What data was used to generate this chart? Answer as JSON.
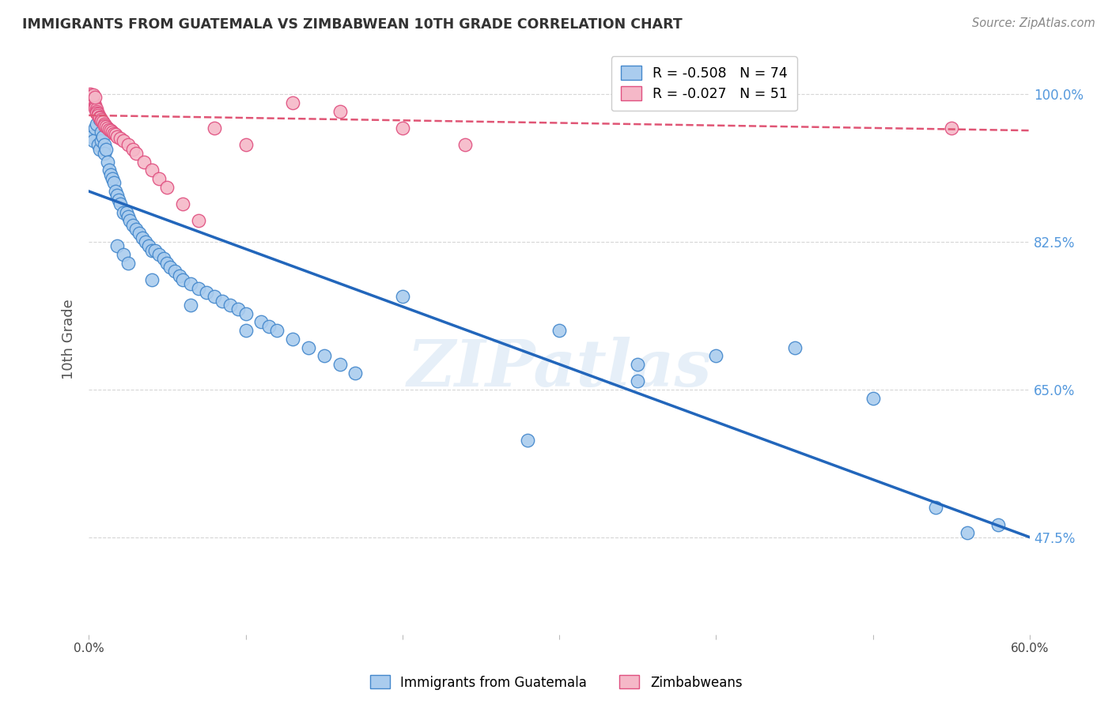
{
  "title": "IMMIGRANTS FROM GUATEMALA VS ZIMBABWEAN 10TH GRADE CORRELATION CHART",
  "source": "Source: ZipAtlas.com",
  "ylabel": "10th Grade",
  "ytick_labels": [
    "100.0%",
    "82.5%",
    "65.0%",
    "47.5%"
  ],
  "ytick_values": [
    1.0,
    0.825,
    0.65,
    0.475
  ],
  "xlim": [
    0.0,
    0.6
  ],
  "ylim": [
    0.36,
    1.06
  ],
  "blue_R": "-0.508",
  "blue_N": "74",
  "pink_R": "-0.027",
  "pink_N": "51",
  "legend_label_blue": "Immigrants from Guatemala",
  "legend_label_pink": "Zimbabweans",
  "blue_fill": "#aaccee",
  "blue_edge": "#4488cc",
  "pink_fill": "#f5b8c8",
  "pink_edge": "#e05080",
  "blue_line_color": "#2266bb",
  "pink_line_color": "#e05575",
  "watermark_text": "ZIPatlas",
  "blue_trend_x": [
    0.0,
    0.6
  ],
  "blue_trend_y": [
    0.885,
    0.475
  ],
  "pink_trend_x": [
    0.0,
    0.6
  ],
  "pink_trend_y": [
    0.975,
    0.957
  ],
  "blue_scatter_x": [
    0.002,
    0.003,
    0.004,
    0.005,
    0.006,
    0.007,
    0.007,
    0.008,
    0.008,
    0.009,
    0.01,
    0.01,
    0.011,
    0.012,
    0.013,
    0.014,
    0.015,
    0.016,
    0.017,
    0.018,
    0.019,
    0.02,
    0.022,
    0.024,
    0.025,
    0.026,
    0.028,
    0.03,
    0.032,
    0.034,
    0.036,
    0.038,
    0.04,
    0.042,
    0.045,
    0.048,
    0.05,
    0.052,
    0.055,
    0.058,
    0.06,
    0.065,
    0.07,
    0.075,
    0.08,
    0.085,
    0.09,
    0.095,
    0.1,
    0.11,
    0.115,
    0.12,
    0.13,
    0.14,
    0.15,
    0.16,
    0.17,
    0.018,
    0.022,
    0.025,
    0.04,
    0.065,
    0.1,
    0.35,
    0.4,
    0.45,
    0.5,
    0.54,
    0.56,
    0.58,
    0.35,
    0.3,
    0.28,
    0.2
  ],
  "blue_scatter_y": [
    0.95,
    0.945,
    0.96,
    0.965,
    0.94,
    0.97,
    0.935,
    0.955,
    0.945,
    0.95,
    0.94,
    0.93,
    0.935,
    0.92,
    0.91,
    0.905,
    0.9,
    0.895,
    0.885,
    0.88,
    0.875,
    0.87,
    0.86,
    0.86,
    0.855,
    0.85,
    0.845,
    0.84,
    0.835,
    0.83,
    0.825,
    0.82,
    0.815,
    0.815,
    0.81,
    0.805,
    0.8,
    0.795,
    0.79,
    0.785,
    0.78,
    0.775,
    0.77,
    0.765,
    0.76,
    0.755,
    0.75,
    0.745,
    0.74,
    0.73,
    0.725,
    0.72,
    0.71,
    0.7,
    0.69,
    0.68,
    0.67,
    0.82,
    0.81,
    0.8,
    0.78,
    0.75,
    0.72,
    0.68,
    0.69,
    0.7,
    0.64,
    0.51,
    0.48,
    0.49,
    0.66,
    0.72,
    0.59,
    0.76
  ],
  "pink_scatter_x": [
    0.001,
    0.001,
    0.002,
    0.002,
    0.002,
    0.003,
    0.003,
    0.003,
    0.004,
    0.004,
    0.004,
    0.005,
    0.005,
    0.005,
    0.006,
    0.006,
    0.007,
    0.007,
    0.008,
    0.008,
    0.009,
    0.01,
    0.01,
    0.011,
    0.012,
    0.013,
    0.014,
    0.015,
    0.016,
    0.017,
    0.018,
    0.02,
    0.022,
    0.025,
    0.028,
    0.03,
    0.035,
    0.04,
    0.045,
    0.05,
    0.06,
    0.07,
    0.08,
    0.1,
    0.13,
    0.16,
    0.2,
    0.24,
    0.003,
    0.004,
    0.55
  ],
  "pink_scatter_y": [
    1.0,
    0.998,
    0.997,
    0.995,
    0.993,
    0.992,
    0.99,
    0.988,
    0.987,
    0.985,
    0.983,
    0.982,
    0.98,
    0.978,
    0.977,
    0.975,
    0.973,
    0.972,
    0.97,
    0.968,
    0.967,
    0.965,
    0.963,
    0.962,
    0.96,
    0.958,
    0.957,
    0.955,
    0.953,
    0.952,
    0.95,
    0.948,
    0.945,
    0.94,
    0.935,
    0.93,
    0.92,
    0.91,
    0.9,
    0.89,
    0.87,
    0.85,
    0.96,
    0.94,
    0.99,
    0.98,
    0.96,
    0.94,
    0.999,
    0.996,
    0.96
  ],
  "background_color": "#ffffff",
  "grid_color": "#cccccc",
  "title_color": "#333333",
  "axis_label_color": "#555555",
  "ytick_color": "#5599dd",
  "xtick_left_label": "0.0%",
  "xtick_right_label": "60.0%"
}
